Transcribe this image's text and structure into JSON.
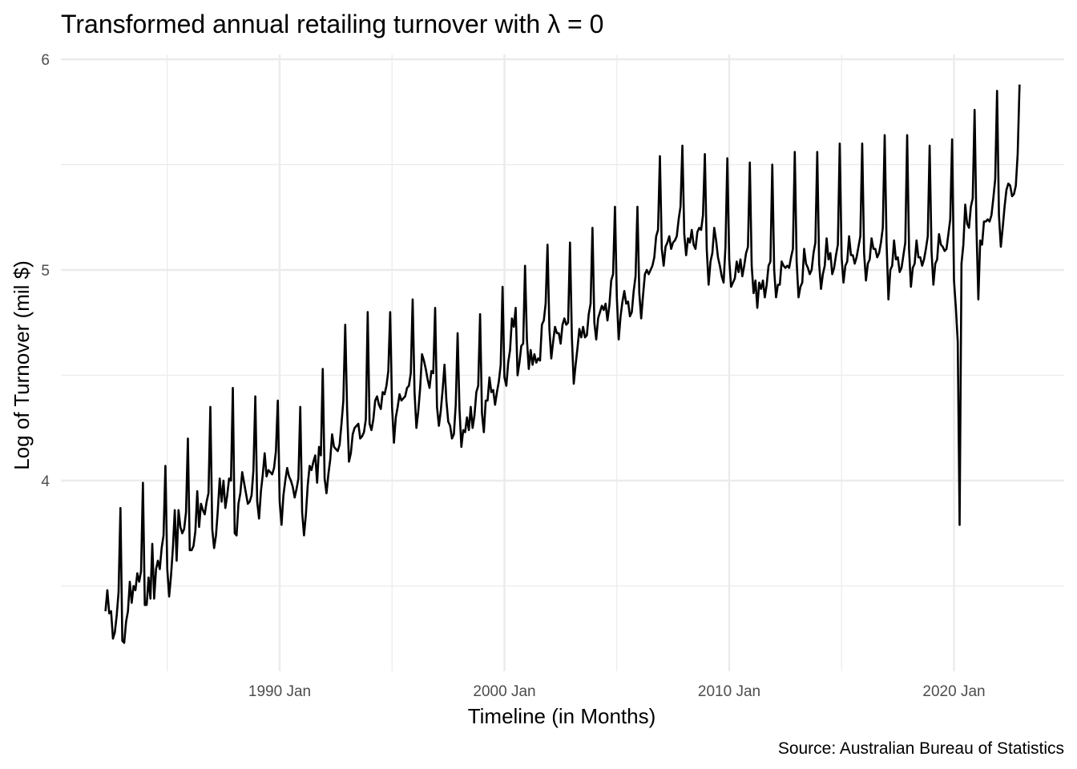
{
  "chart_data": {
    "type": "line",
    "title": "Transformed annual retailing turnover with λ = 0",
    "xlabel": "Timeline (in Months)",
    "ylabel": "Log of Turnover (mil $)",
    "caption": "Source: Australian Bureau of Statistics",
    "x_start": "1982 Apr",
    "x_end": "2022 Dec",
    "x_ticks": [
      "1990 Jan",
      "2000 Jan",
      "2010 Jan",
      "2020 Jan"
    ],
    "y_ticks": [
      "4",
      "5",
      "6"
    ],
    "ylim": [
      3.2,
      6
    ],
    "grid": true,
    "series": [
      {
        "frequency": "monthly",
        "values": [
          3.38,
          3.48,
          3.37,
          3.38,
          3.25,
          3.28,
          3.36,
          3.47,
          3.87,
          3.24,
          3.23,
          3.33,
          3.38,
          3.52,
          3.42,
          3.5,
          3.48,
          3.56,
          3.52,
          3.57,
          3.99,
          3.41,
          3.41,
          3.54,
          3.44,
          3.7,
          3.44,
          3.58,
          3.62,
          3.58,
          3.68,
          3.74,
          4.07,
          3.58,
          3.45,
          3.55,
          3.68,
          3.86,
          3.62,
          3.86,
          3.78,
          3.75,
          3.77,
          3.85,
          4.2,
          3.67,
          3.67,
          3.69,
          3.76,
          3.95,
          3.78,
          3.89,
          3.86,
          3.84,
          3.9,
          3.94,
          4.35,
          3.77,
          3.68,
          3.74,
          3.86,
          4.01,
          3.9,
          4.0,
          3.87,
          3.93,
          4.01,
          4.0,
          4.44,
          3.75,
          3.74,
          3.89,
          3.94,
          4.04,
          3.99,
          3.94,
          3.89,
          3.9,
          3.93,
          4.05,
          4.4,
          3.9,
          3.82,
          3.95,
          4.03,
          4.13,
          4.02,
          4.05,
          4.04,
          4.03,
          4.06,
          4.14,
          4.38,
          3.9,
          3.79,
          3.93,
          4.0,
          4.06,
          4.02,
          4.0,
          3.97,
          3.92,
          3.96,
          4.01,
          4.35,
          3.85,
          3.74,
          3.84,
          3.98,
          4.07,
          4.05,
          4.09,
          4.12,
          3.99,
          4.16,
          4.12,
          4.53,
          4.01,
          3.94,
          4.03,
          4.1,
          4.22,
          4.16,
          4.15,
          4.14,
          4.17,
          4.27,
          4.38,
          4.74,
          4.34,
          4.09,
          4.13,
          4.22,
          4.25,
          4.26,
          4.27,
          4.2,
          4.21,
          4.23,
          4.29,
          4.8,
          4.27,
          4.24,
          4.29,
          4.38,
          4.4,
          4.36,
          4.34,
          4.42,
          4.41,
          4.45,
          4.52,
          4.8,
          4.35,
          4.18,
          4.3,
          4.35,
          4.41,
          4.38,
          4.39,
          4.4,
          4.44,
          4.45,
          4.51,
          4.86,
          4.42,
          4.25,
          4.33,
          4.44,
          4.6,
          4.57,
          4.53,
          4.48,
          4.44,
          4.52,
          4.51,
          4.82,
          4.35,
          4.26,
          4.33,
          4.43,
          4.55,
          4.38,
          4.28,
          4.26,
          4.2,
          4.22,
          4.36,
          4.7,
          4.34,
          4.16,
          4.24,
          4.23,
          4.3,
          4.24,
          4.35,
          4.25,
          4.31,
          4.42,
          4.45,
          4.79,
          4.32,
          4.23,
          4.38,
          4.38,
          4.49,
          4.42,
          4.43,
          4.36,
          4.42,
          4.47,
          4.55,
          4.92,
          4.49,
          4.45,
          4.56,
          4.62,
          4.77,
          4.73,
          4.82,
          4.5,
          4.56,
          4.64,
          4.65,
          5.02,
          4.67,
          4.53,
          4.62,
          4.55,
          4.6,
          4.56,
          4.58,
          4.57,
          4.74,
          4.76,
          4.84,
          5.12,
          4.72,
          4.58,
          4.66,
          4.73,
          4.7,
          4.7,
          4.65,
          4.74,
          4.77,
          4.74,
          4.75,
          5.13,
          4.68,
          4.46,
          4.55,
          4.63,
          4.72,
          4.68,
          4.73,
          4.68,
          4.69,
          4.79,
          4.84,
          5.2,
          4.75,
          4.67,
          4.77,
          4.8,
          4.83,
          4.81,
          4.84,
          4.76,
          4.83,
          4.95,
          4.98,
          5.3,
          4.87,
          4.67,
          4.78,
          4.85,
          4.9,
          4.84,
          4.85,
          4.78,
          4.8,
          4.9,
          4.97,
          5.3,
          4.89,
          4.77,
          4.88,
          4.98,
          5.0,
          4.98,
          5.0,
          5.02,
          5.06,
          5.16,
          5.19,
          5.54,
          5.1,
          5.02,
          5.11,
          5.13,
          5.16,
          5.1,
          5.13,
          5.14,
          5.16,
          5.24,
          5.3,
          5.59,
          5.17,
          5.07,
          5.15,
          5.13,
          5.19,
          5.12,
          5.1,
          5.18,
          5.2,
          5.19,
          5.26,
          5.55,
          5.1,
          4.93,
          5.04,
          5.08,
          5.2,
          5.14,
          5.06,
          5.02,
          4.97,
          4.94,
          5.11,
          5.53,
          5.05,
          4.92,
          4.94,
          4.96,
          5.04,
          4.99,
          5.05,
          4.97,
          5.02,
          5.08,
          5.11,
          5.51,
          5.02,
          4.89,
          4.95,
          4.82,
          4.94,
          4.91,
          4.95,
          4.87,
          4.93,
          5.02,
          5.04,
          5.5,
          5.0,
          4.87,
          4.93,
          4.93,
          5.04,
          5.02,
          5.01,
          5.02,
          5.01,
          5.06,
          5.1,
          5.56,
          5.04,
          4.87,
          4.92,
          4.94,
          5.1,
          5.03,
          5.01,
          4.98,
          5.0,
          5.08,
          5.13,
          5.56,
          5.03,
          4.91,
          4.98,
          5.02,
          5.15,
          5.05,
          5.08,
          4.98,
          5.01,
          5.07,
          5.12,
          5.6,
          5.06,
          4.94,
          5.02,
          5.04,
          5.16,
          5.07,
          5.07,
          5.03,
          5.06,
          5.11,
          5.16,
          5.6,
          5.08,
          4.95,
          5.03,
          5.05,
          5.15,
          5.1,
          5.1,
          5.06,
          5.08,
          5.13,
          5.2,
          5.64,
          5.13,
          4.86,
          5.0,
          5.02,
          5.14,
          5.05,
          5.06,
          4.99,
          5.01,
          5.07,
          5.13,
          5.64,
          5.1,
          4.92,
          5.01,
          5.03,
          5.14,
          5.06,
          5.06,
          5.02,
          5.05,
          5.1,
          5.16,
          5.59,
          5.09,
          4.93,
          5.03,
          5.05,
          5.17,
          5.12,
          5.11,
          5.09,
          5.1,
          5.17,
          5.24,
          5.62,
          4.95,
          4.82,
          4.66,
          3.79,
          5.03,
          5.12,
          5.31,
          5.22,
          5.2,
          5.3,
          5.34,
          5.76,
          5.2,
          4.86,
          5.14,
          5.12,
          5.23,
          5.23,
          5.24,
          5.23,
          5.26,
          5.34,
          5.43,
          5.85,
          5.26,
          5.11,
          5.2,
          5.3,
          5.38,
          5.41,
          5.4,
          5.35,
          5.36,
          5.4,
          5.55,
          5.88
        ]
      }
    ]
  }
}
